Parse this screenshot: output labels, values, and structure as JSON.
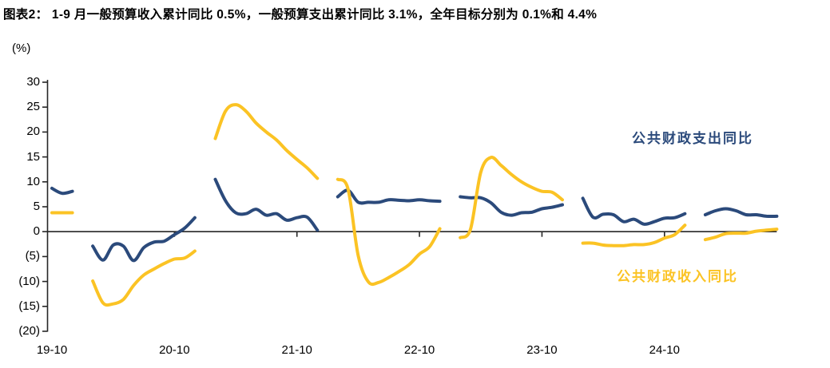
{
  "title": "图表2： 1-9 月一般预算收入累计同比 0.5%，一般预算支出累计同比 3.1%，全年目标分别为 0.1%和 4.4%",
  "unit_label": "(%)",
  "colors": {
    "expenditure_line": "#2b4a7b",
    "revenue_line": "#fbc324",
    "axis": "#262626",
    "text": "#000000"
  },
  "chart_data": {
    "type": "line",
    "title": "图表2： 1-9 月一般预算收入累计同比 0.5%，一般预算支出累计同比 3.1%，全年目标分别为 0.1%和 4.4%",
    "ylabel": "(%)",
    "ylim": [
      -20,
      30
    ],
    "y_ticks": [
      30,
      25,
      20,
      15,
      10,
      5,
      0,
      -5,
      -10,
      -15,
      -20
    ],
    "y_tick_labels": [
      "30",
      "25",
      "20",
      "15",
      "10",
      "5",
      "0",
      "(5)",
      "(10)",
      "(15)",
      "(20)"
    ],
    "x_tick_labels": [
      "19-10",
      "20-10",
      "21-10",
      "22-10",
      "23-10",
      "24-10"
    ],
    "x_tick_indices": [
      0,
      12,
      24,
      36,
      48,
      60
    ],
    "grid": false,
    "legend_position": "floating-labels",
    "x": [
      "2019-10",
      "2019-11",
      "2019-12",
      "2020-01",
      "2020-02",
      "2020-03",
      "2020-04",
      "2020-05",
      "2020-06",
      "2020-07",
      "2020-08",
      "2020-09",
      "2020-10",
      "2020-11",
      "2020-12",
      "2021-01",
      "2021-02",
      "2021-03",
      "2021-04",
      "2021-05",
      "2021-06",
      "2021-07",
      "2021-08",
      "2021-09",
      "2021-10",
      "2021-11",
      "2021-12",
      "2022-01",
      "2022-02",
      "2022-03",
      "2022-04",
      "2022-05",
      "2022-06",
      "2022-07",
      "2022-08",
      "2022-09",
      "2022-10",
      "2022-11",
      "2022-12",
      "2023-01",
      "2023-02",
      "2023-03",
      "2023-04",
      "2023-05",
      "2023-06",
      "2023-07",
      "2023-08",
      "2023-09",
      "2023-10",
      "2023-11",
      "2023-12",
      "2024-01",
      "2024-02",
      "2024-03",
      "2024-04",
      "2024-05",
      "2024-06",
      "2024-07",
      "2024-08",
      "2024-09",
      "2024-10",
      "2024-11",
      "2024-12",
      "2025-01",
      "2025-02",
      "2025-03",
      "2025-04",
      "2025-05",
      "2025-06",
      "2025-07",
      "2025-08",
      "2025-09"
    ],
    "series": [
      {
        "name": "公共财政支出同比",
        "color": "#2b4a7b",
        "values": [
          8.7,
          7.7,
          8.1,
          null,
          -2.9,
          -5.7,
          -2.7,
          -2.9,
          -5.8,
          -3.2,
          -2.1,
          -1.9,
          -0.6,
          0.7,
          2.8,
          null,
          10.5,
          6.2,
          3.8,
          3.6,
          4.5,
          3.3,
          3.6,
          2.3,
          2.8,
          2.9,
          0.3,
          null,
          7.0,
          8.3,
          5.9,
          5.9,
          5.9,
          6.4,
          6.3,
          6.2,
          6.4,
          6.2,
          6.1,
          null,
          7.0,
          6.8,
          6.8,
          5.8,
          3.9,
          3.3,
          3.8,
          3.9,
          4.6,
          4.9,
          5.4,
          null,
          6.7,
          2.9,
          3.5,
          3.4,
          2.0,
          2.5,
          1.5,
          2.0,
          2.7,
          2.8,
          3.6,
          null,
          3.4,
          4.2,
          4.6,
          4.2,
          3.4,
          3.4,
          3.1,
          3.1
        ]
      },
      {
        "name": "公共财政收入同比",
        "color": "#fbc324",
        "values": [
          3.8,
          3.8,
          3.8,
          null,
          -9.9,
          -14.3,
          -14.5,
          -13.6,
          -10.8,
          -8.7,
          -7.5,
          -6.4,
          -5.5,
          -5.3,
          -3.9,
          null,
          18.7,
          24.2,
          25.5,
          24.2,
          21.8,
          20.0,
          18.4,
          16.3,
          14.5,
          12.8,
          10.7,
          null,
          10.5,
          8.6,
          -4.8,
          -10.1,
          -10.2,
          -9.2,
          -8.0,
          -6.6,
          -4.5,
          -3.0,
          0.6,
          null,
          -1.2,
          0.5,
          11.9,
          14.9,
          13.3,
          11.5,
          10.0,
          8.9,
          8.1,
          7.9,
          6.4,
          null,
          -2.3,
          -2.3,
          -2.7,
          -2.8,
          -2.8,
          -2.6,
          -2.6,
          -2.2,
          -1.3,
          -0.6,
          1.3,
          null,
          -1.6,
          -1.1,
          -0.4,
          -0.3,
          -0.3,
          0.1,
          0.3,
          0.5
        ]
      }
    ]
  }
}
